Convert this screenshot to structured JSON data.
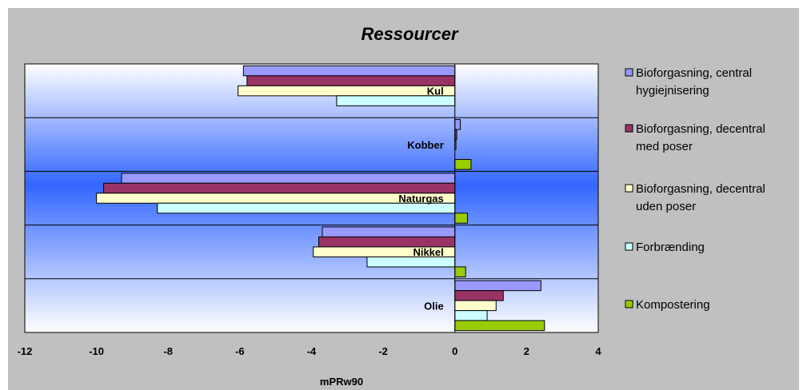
{
  "chart_data": {
    "type": "bar",
    "orientation": "horizontal",
    "title": "Ressourcer",
    "xlabel": "mPRw90",
    "ylabel": "",
    "xlim": [
      -12,
      4
    ],
    "x_ticks": [
      "-12",
      "-10",
      "-8",
      "-6",
      "-4",
      "-2",
      "0",
      "2",
      "4"
    ],
    "categories": [
      "Kul",
      "Kobber",
      "Naturgas",
      "Nikkel",
      "Olie"
    ],
    "legend_position": "right",
    "series": [
      {
        "name": "Bioforgasning, central hygiejnisering",
        "legend_lines": [
          "Bioforgasning, central",
          "hygiejnisering"
        ],
        "color": "#9999FF",
        "values": [
          -5.9,
          0.15,
          -9.3,
          -3.7,
          2.4
        ]
      },
      {
        "name": "Bioforgasning, decentral med poser",
        "legend_lines": [
          "Bioforgasning, decentral",
          "med poser"
        ],
        "color": "#993366",
        "values": [
          -5.8,
          0.05,
          -9.8,
          -3.8,
          1.35
        ]
      },
      {
        "name": "Bioforgasning, decentral uden poser",
        "legend_lines": [
          "Bioforgasning, decentral",
          "uden poser"
        ],
        "color": "#FFFFCC",
        "values": [
          -6.05,
          0.03,
          -10.0,
          -3.95,
          1.15
        ]
      },
      {
        "name": "Forbrænding",
        "legend_lines": [
          "Forbrænding"
        ],
        "color": "#CCFFFF",
        "values": [
          -3.3,
          0.0,
          -8.3,
          -2.45,
          0.9
        ]
      },
      {
        "name": "Kompostering",
        "legend_lines": [
          "Kompostering"
        ],
        "color": "#99CC00",
        "values": [
          0.0,
          0.45,
          0.35,
          0.3,
          2.5
        ]
      }
    ],
    "grid": true
  }
}
